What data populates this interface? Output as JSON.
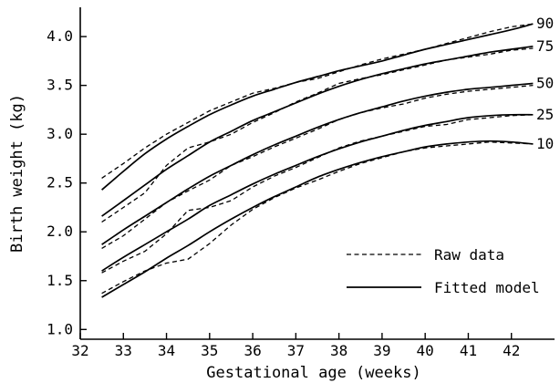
{
  "chart_data": {
    "type": "line",
    "title": "",
    "xlabel": "Gestational age (weeks)",
    "ylabel": "Birth weight (kg)",
    "xlim": [
      32,
      43
    ],
    "ylim": [
      0.9,
      4.3
    ],
    "xticks": [
      32,
      33,
      34,
      35,
      36,
      37,
      38,
      39,
      40,
      41,
      42
    ],
    "yticks": [
      1.0,
      1.5,
      2.0,
      2.5,
      3.0,
      3.5,
      4.0
    ],
    "ytick_labels": [
      "1.0",
      "1.5",
      "2.0",
      "2.5",
      "3.0",
      "3.5",
      "4.0"
    ],
    "grid": false,
    "legend": {
      "placement": "bottom-right",
      "entries": [
        {
          "label": "Raw data",
          "style": "dashed"
        },
        {
          "label": "Fitted model",
          "style": "solid"
        }
      ]
    },
    "x": [
      32.5,
      33,
      33.5,
      34,
      34.5,
      35,
      35.5,
      36,
      36.5,
      37,
      37.5,
      38,
      38.5,
      39,
      39.5,
      40,
      40.5,
      41,
      41.5,
      42,
      42.5
    ],
    "curves": [
      {
        "label": "10",
        "fitted": [
          1.33,
          1.46,
          1.59,
          1.73,
          1.86,
          2.0,
          2.13,
          2.25,
          2.36,
          2.46,
          2.56,
          2.64,
          2.71,
          2.77,
          2.82,
          2.87,
          2.9,
          2.92,
          2.93,
          2.92,
          2.9
        ],
        "raw": [
          1.37,
          1.49,
          1.6,
          1.68,
          1.72,
          1.88,
          2.07,
          2.23,
          2.35,
          2.45,
          2.53,
          2.62,
          2.7,
          2.76,
          2.82,
          2.86,
          2.88,
          2.9,
          2.92,
          2.91,
          2.9
        ]
      },
      {
        "label": "25",
        "fitted": [
          1.6,
          1.74,
          1.87,
          2.0,
          2.13,
          2.27,
          2.38,
          2.49,
          2.59,
          2.68,
          2.77,
          2.85,
          2.92,
          2.98,
          3.04,
          3.09,
          3.13,
          3.17,
          3.19,
          3.2,
          3.2
        ],
        "raw": [
          1.58,
          1.7,
          1.8,
          1.98,
          2.22,
          2.25,
          2.32,
          2.46,
          2.57,
          2.66,
          2.76,
          2.86,
          2.93,
          2.98,
          3.03,
          3.08,
          3.1,
          3.15,
          3.17,
          3.19,
          3.2
        ]
      },
      {
        "label": "50",
        "fitted": [
          1.87,
          2.02,
          2.16,
          2.3,
          2.44,
          2.57,
          2.68,
          2.79,
          2.89,
          2.98,
          3.07,
          3.15,
          3.22,
          3.28,
          3.34,
          3.39,
          3.43,
          3.46,
          3.48,
          3.5,
          3.52
        ],
        "raw": [
          1.83,
          1.96,
          2.13,
          2.3,
          2.42,
          2.53,
          2.68,
          2.77,
          2.87,
          2.96,
          3.05,
          3.15,
          3.22,
          3.27,
          3.31,
          3.37,
          3.41,
          3.44,
          3.46,
          3.48,
          3.5
        ]
      },
      {
        "label": "75",
        "fitted": [
          2.16,
          2.32,
          2.48,
          2.64,
          2.78,
          2.92,
          3.03,
          3.14,
          3.23,
          3.32,
          3.41,
          3.49,
          3.56,
          3.62,
          3.67,
          3.72,
          3.76,
          3.8,
          3.84,
          3.87,
          3.9
        ],
        "raw": [
          2.1,
          2.25,
          2.4,
          2.68,
          2.86,
          2.92,
          3.0,
          3.12,
          3.22,
          3.33,
          3.42,
          3.52,
          3.57,
          3.61,
          3.66,
          3.71,
          3.76,
          3.79,
          3.82,
          3.86,
          3.88
        ]
      },
      {
        "label": "90",
        "fitted": [
          2.43,
          2.62,
          2.8,
          2.95,
          3.08,
          3.2,
          3.3,
          3.39,
          3.46,
          3.53,
          3.59,
          3.65,
          3.7,
          3.75,
          3.81,
          3.87,
          3.92,
          3.97,
          4.02,
          4.07,
          4.13
        ],
        "raw": [
          2.55,
          2.7,
          2.86,
          3.0,
          3.12,
          3.24,
          3.33,
          3.42,
          3.47,
          3.53,
          3.57,
          3.64,
          3.71,
          3.77,
          3.82,
          3.87,
          3.93,
          3.99,
          4.05,
          4.1,
          4.13
        ]
      }
    ]
  }
}
